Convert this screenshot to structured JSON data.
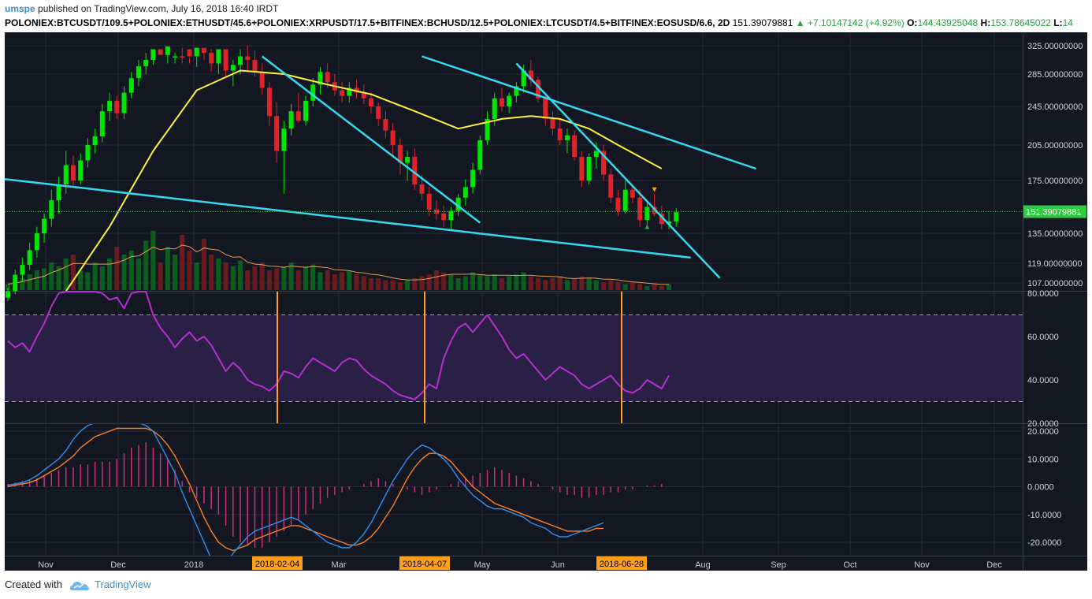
{
  "header": {
    "user": "umspe",
    "published_text": " published on TradingView.com, July 16, 2018 16:40 IRDT"
  },
  "symbol_bar": {
    "symbol": "POLONIEX:BTCUSDT/109.5+POLONIEX:ETHUSDT/45.6+POLONIEX:XRPUSDT/17.5+BITFINEX:BCHUSD/12.5+POLONIEX:LTCUSDT/4.5+BITFINEX:EOSUSD/6.6, 2D",
    "last": "151.39079881",
    "arrow": "▲",
    "change": "+7.10147142 (+4.92%)",
    "o_label": "O:",
    "o_value": "144.43925048",
    "h_label": "H:",
    "h_value": "153.78645022",
    "l_label": "L:",
    "l_value": "14"
  },
  "footer": {
    "created_with": "Created with",
    "brand": "TradingView"
  },
  "colors": {
    "background": "#131722",
    "grid": "#262a36",
    "up": "#00e600",
    "down": "#e0232b",
    "ma": "#fff13a",
    "trend": "#35d9ee",
    "rsi": "#b32fd0",
    "rsi_band": "#2a1f45",
    "macd": "#2d8ff0",
    "signal": "#ff7f1f",
    "hist": "#ce2c7d",
    "marker": "#ff9f1a"
  },
  "chart_data": [
    {
      "type": "candlestick",
      "panel": "price",
      "y_ticks": [
        "325.00000000",
        "285.00000000",
        "245.00000000",
        "205.00000000",
        "175.00000000",
        "135.00000000",
        "119.00000000",
        "107.00000000"
      ],
      "last_price_label": "151.39079881",
      "x_ticks": [
        "Nov",
        "Dec",
        "2018",
        "Mar",
        "May",
        "Jun",
        "Aug",
        "Sep",
        "Oct",
        "Nov",
        "Dec"
      ],
      "date_markers": [
        "2018-02-04",
        "2018-04-07",
        "2018-06-28"
      ],
      "candles": [
        [
          98,
          104,
          96,
          102
        ],
        [
          102,
          115,
          100,
          112
        ],
        [
          112,
          122,
          108,
          118
        ],
        [
          118,
          130,
          115,
          126
        ],
        [
          126,
          140,
          122,
          135
        ],
        [
          135,
          150,
          130,
          146
        ],
        [
          146,
          168,
          140,
          160
        ],
        [
          160,
          178,
          150,
          172
        ],
        [
          172,
          200,
          165,
          188
        ],
        [
          188,
          196,
          170,
          175
        ],
        [
          175,
          198,
          172,
          192
        ],
        [
          192,
          212,
          186,
          205
        ],
        [
          205,
          222,
          198,
          214
        ],
        [
          214,
          248,
          208,
          240
        ],
        [
          240,
          262,
          230,
          252
        ],
        [
          252,
          258,
          232,
          238
        ],
        [
          238,
          270,
          232,
          262
        ],
        [
          262,
          288,
          255,
          280
        ],
        [
          280,
          305,
          270,
          296
        ],
        [
          296,
          315,
          285,
          305
        ],
        [
          305,
          340,
          298,
          330
        ],
        [
          330,
          345,
          305,
          312
        ],
        [
          312,
          336,
          300,
          326
        ],
        [
          326,
          350,
          315,
          340
        ],
        [
          340,
          350,
          322,
          330
        ],
        [
          330,
          342,
          300,
          310
        ],
        [
          310,
          330,
          295,
          322
        ],
        [
          322,
          335,
          305,
          315
        ],
        [
          315,
          330,
          288,
          300
        ],
        [
          300,
          345,
          285,
          330
        ],
        [
          330,
          338,
          282,
          290
        ],
        [
          290,
          305,
          270,
          298
        ],
        [
          298,
          320,
          285,
          310
        ],
        [
          310,
          325,
          290,
          305
        ],
        [
          305,
          318,
          282,
          288
        ],
        [
          288,
          300,
          260,
          268
        ],
        [
          268,
          275,
          225,
          235
        ],
        [
          235,
          250,
          190,
          200
        ],
        [
          200,
          230,
          165,
          222
        ],
        [
          222,
          248,
          215,
          240
        ],
        [
          240,
          262,
          228,
          230
        ],
        [
          230,
          258,
          225,
          252
        ],
        [
          252,
          280,
          245,
          272
        ],
        [
          272,
          295,
          260,
          288
        ],
        [
          288,
          300,
          268,
          275
        ],
        [
          275,
          285,
          258,
          265
        ],
        [
          265,
          275,
          250,
          258
        ],
        [
          258,
          275,
          250,
          268
        ],
        [
          268,
          278,
          255,
          262
        ],
        [
          262,
          272,
          248,
          255
        ],
        [
          255,
          262,
          238,
          245
        ],
        [
          245,
          250,
          225,
          232
        ],
        [
          232,
          240,
          212,
          220
        ],
        [
          220,
          228,
          195,
          205
        ],
        [
          205,
          212,
          180,
          190
        ],
        [
          190,
          200,
          175,
          195
        ],
        [
          195,
          202,
          168,
          172
        ],
        [
          172,
          180,
          160,
          165
        ],
        [
          165,
          170,
          148,
          153
        ],
        [
          153,
          160,
          145,
          150
        ],
        [
          150,
          156,
          140,
          145
        ],
        [
          145,
          155,
          138,
          152
        ],
        [
          152,
          165,
          148,
          162
        ],
        [
          162,
          176,
          156,
          170
        ],
        [
          170,
          190,
          165,
          184
        ],
        [
          184,
          215,
          180,
          210
        ],
        [
          210,
          240,
          205,
          232
        ],
        [
          232,
          262,
          225,
          255
        ],
        [
          255,
          268,
          240,
          245
        ],
        [
          245,
          262,
          238,
          258
        ],
        [
          258,
          275,
          250,
          270
        ],
        [
          270,
          298,
          262,
          290
        ],
        [
          290,
          305,
          270,
          278
        ],
        [
          278,
          282,
          250,
          255
        ],
        [
          255,
          262,
          225,
          232
        ],
        [
          232,
          240,
          215,
          222
        ],
        [
          222,
          232,
          205,
          210
        ],
        [
          210,
          222,
          198,
          215
        ],
        [
          215,
          220,
          192,
          195
        ],
        [
          195,
          200,
          170,
          175
        ],
        [
          175,
          198,
          172,
          195
        ],
        [
          195,
          208,
          185,
          200
        ],
        [
          200,
          205,
          175,
          180
        ],
        [
          180,
          185,
          158,
          162
        ],
        [
          162,
          168,
          148,
          152
        ],
        [
          152,
          175,
          150,
          168
        ],
        [
          168,
          172,
          158,
          162
        ],
        [
          162,
          168,
          140,
          145
        ],
        [
          145,
          158,
          140,
          155
        ],
        [
          155,
          165,
          148,
          150
        ],
        [
          150,
          156,
          138,
          142
        ],
        [
          142,
          152,
          138,
          144
        ],
        [
          144,
          154,
          140,
          151
        ]
      ],
      "moving_average": [
        {
          "i": 8,
          "v": 102
        },
        {
          "i": 14,
          "v": 140
        },
        {
          "i": 20,
          "v": 200
        },
        {
          "i": 26,
          "v": 265
        },
        {
          "i": 32,
          "v": 290
        },
        {
          "i": 38,
          "v": 285
        },
        {
          "i": 44,
          "v": 272
        },
        {
          "i": 50,
          "v": 260
        },
        {
          "i": 56,
          "v": 240
        },
        {
          "i": 62,
          "v": 222
        },
        {
          "i": 68,
          "v": 232
        },
        {
          "i": 72,
          "v": 235
        },
        {
          "i": 76,
          "v": 232
        },
        {
          "i": 80,
          "v": 222
        },
        {
          "i": 84,
          "v": 205
        },
        {
          "i": 90,
          "v": 185
        }
      ],
      "trendlines": [
        {
          "from": {
            "i": -3,
            "v": 178
          },
          "to": {
            "i": 94,
            "v": 122
          }
        },
        {
          "from": {
            "i": 35,
            "v": 340
          },
          "to": {
            "i": 65,
            "v": 143
          }
        },
        {
          "from": {
            "i": 57,
            "v": 340
          },
          "to": {
            "i": 103,
            "v": 185
          }
        },
        {
          "from": {
            "i": 70,
            "v": 300
          },
          "to": {
            "i": 98,
            "v": 110
          }
        }
      ],
      "signal_markers": [
        {
          "i": 89,
          "v": 168,
          "shape": "triangle-down",
          "color": "#ff9f1a"
        },
        {
          "i": 88,
          "v": 140,
          "shape": "triangle-up",
          "color": "#2ea043"
        }
      ],
      "volume": [
        3,
        4,
        6,
        8,
        10,
        11,
        14,
        12,
        16,
        18,
        10,
        9,
        14,
        12,
        16,
        22,
        18,
        20,
        16,
        25,
        30,
        14,
        22,
        18,
        28,
        20,
        14,
        26,
        18,
        16,
        14,
        12,
        15,
        10,
        12,
        14,
        10,
        11,
        12,
        14,
        10,
        12,
        13,
        9,
        10,
        8,
        9,
        10,
        8,
        7,
        6,
        6,
        5,
        5,
        4,
        5,
        6,
        7,
        8,
        10,
        9,
        8,
        6,
        7,
        9,
        8,
        7,
        8,
        6,
        7,
        8,
        9,
        7,
        6,
        5,
        6,
        7,
        5,
        6,
        7,
        6,
        5,
        4,
        5,
        4,
        3,
        4,
        3,
        2,
        3,
        2,
        3
      ]
    },
    {
      "type": "line",
      "panel": "rsi",
      "y_ticks": [
        "80.0000",
        "60.0000",
        "40.0000",
        "20.0000"
      ],
      "band": [
        30,
        70
      ],
      "values": [
        58,
        55,
        57,
        53,
        60,
        66,
        74,
        80,
        82,
        84,
        90,
        86,
        83,
        80,
        77,
        78,
        73,
        80,
        84,
        86,
        70,
        64,
        60,
        55,
        59,
        62,
        58,
        60,
        56,
        50,
        44,
        48,
        45,
        40,
        38,
        37,
        35,
        38,
        44,
        43,
        41,
        46,
        50,
        48,
        46,
        44,
        48,
        50,
        49,
        45,
        42,
        40,
        38,
        35,
        33,
        32,
        31,
        34,
        38,
        36,
        50,
        58,
        64,
        66,
        62,
        66,
        70,
        65,
        60,
        54,
        50,
        52,
        48,
        44,
        40,
        43,
        46,
        44,
        42,
        38,
        36,
        38,
        40,
        42,
        38,
        35,
        34,
        36,
        40,
        38,
        36,
        42
      ]
    },
    {
      "type": "line",
      "panel": "macd",
      "y_ticks": [
        "20.0000",
        "10.0000",
        "0.0000",
        "-10.0000",
        "-20.0000"
      ],
      "macd": [
        0.5,
        1,
        1.5,
        2.5,
        4,
        6,
        8,
        10,
        13,
        17,
        20,
        22,
        23,
        24,
        25,
        26,
        25,
        24,
        23,
        22,
        20,
        15,
        10,
        5,
        -2,
        -8,
        -14,
        -20,
        -26,
        -30,
        -28,
        -24,
        -21,
        -18,
        -16,
        -15,
        -14,
        -13,
        -12,
        -11,
        -12,
        -14,
        -16,
        -18,
        -20,
        -21,
        -22,
        -22,
        -20,
        -17,
        -13,
        -8,
        -3,
        2,
        6,
        10,
        13,
        15,
        14,
        12,
        10,
        7,
        3,
        0,
        -3,
        -5,
        -7,
        -8,
        -8,
        -9,
        -10,
        -11,
        -13,
        -14,
        -15,
        -17,
        -18,
        -18,
        -17,
        -16,
        -15,
        -14,
        -13
      ],
      "signal": [
        0,
        0.5,
        1,
        1.5,
        2.5,
        4,
        5.5,
        7,
        9,
        11,
        14,
        16,
        18,
        19,
        20,
        21,
        21,
        21,
        21,
        21,
        20,
        18,
        15,
        11,
        6,
        1,
        -5,
        -11,
        -16,
        -20,
        -22,
        -23,
        -22,
        -21,
        -19,
        -18,
        -17,
        -16,
        -15,
        -14,
        -14,
        -15,
        -16,
        -17,
        -18,
        -19,
        -20,
        -21,
        -21,
        -20,
        -18,
        -15,
        -11,
        -7,
        -2,
        3,
        7,
        10,
        12,
        12,
        11,
        9,
        6,
        3,
        0,
        -2,
        -4,
        -6,
        -7,
        -8,
        -9,
        -10,
        -11,
        -12,
        -13,
        -14,
        -15,
        -16,
        -16,
        -16,
        -16,
        -15,
        -15
      ],
      "histogram": [
        1,
        1.5,
        2,
        2.5,
        3,
        4,
        5,
        6,
        7,
        7,
        8,
        8,
        9,
        9,
        9,
        10,
        12,
        14,
        15,
        16,
        14,
        12,
        10,
        6,
        2,
        -2,
        -4,
        -6,
        -8,
        -10,
        -14,
        -18,
        -20,
        -21,
        -22,
        -22,
        -20,
        -18,
        -16,
        -14,
        -12,
        -10,
        -8,
        -6,
        -4,
        -3,
        -2,
        -1,
        0,
        1,
        2,
        3,
        2,
        1,
        0,
        -1,
        -2,
        -3,
        -2,
        -1,
        0,
        1,
        2,
        3,
        4,
        5,
        6,
        7,
        6,
        5,
        4,
        3,
        2,
        1,
        0,
        -1,
        -2,
        -3,
        -3,
        -4,
        -4,
        -3,
        -3,
        -2,
        -2,
        -1,
        -1,
        0,
        0.5,
        0.5,
        1
      ]
    }
  ]
}
